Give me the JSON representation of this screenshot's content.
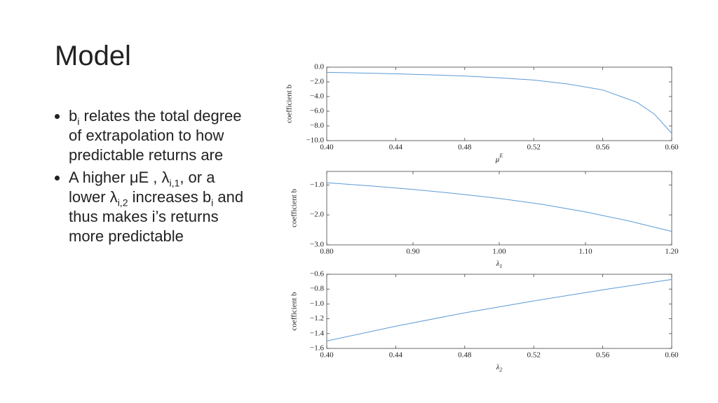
{
  "title": "Model",
  "bullets": [
    {
      "runs": [
        {
          "text": "b"
        },
        {
          "sub": "i"
        },
        {
          "text": " relates the total degree of extrapolation to how predictable returns are"
        }
      ]
    },
    {
      "runs": [
        {
          "text": "A higher μE , λ"
        },
        {
          "sub": "i,1"
        },
        {
          "text": ", or a lower λ"
        },
        {
          "sub": "i,2"
        },
        {
          "text": " increases b"
        },
        {
          "sub": "i"
        },
        {
          "text": " and thus makes i’s returns more predictable"
        }
      ]
    }
  ],
  "chart_data": [
    {
      "type": "line",
      "y_label": "coefficient b",
      "x_label": "μ",
      "x_label_sup": "E",
      "color": "#5b9bd5",
      "x": [
        0.4,
        0.42,
        0.44,
        0.46,
        0.48,
        0.5,
        0.52,
        0.54,
        0.56,
        0.58,
        0.59,
        0.6
      ],
      "values": [
        -0.7,
        -0.8,
        -0.9,
        -1.05,
        -1.2,
        -1.45,
        -1.75,
        -2.3,
        -3.1,
        -4.8,
        -6.4,
        -9.0
      ],
      "xlim": [
        0.4,
        0.6
      ],
      "xticks": [
        {
          "value": 0.4,
          "label": "0.40"
        },
        {
          "value": 0.44,
          "label": "0.44"
        },
        {
          "value": 0.48,
          "label": "0.48"
        },
        {
          "value": 0.52,
          "label": "0.52"
        },
        {
          "value": 0.56,
          "label": "0.56"
        },
        {
          "value": 0.6,
          "label": "0.60"
        }
      ],
      "ylim": [
        -10,
        0
      ],
      "yticks": [
        {
          "value": 0,
          "label": "0.0"
        },
        {
          "value": -2,
          "label": "−2.0"
        },
        {
          "value": -4,
          "label": "−4.0"
        },
        {
          "value": -6,
          "label": "−6.0"
        },
        {
          "value": -8,
          "label": "−8.0"
        },
        {
          "value": -10,
          "label": "−10.0"
        }
      ]
    },
    {
      "type": "line",
      "y_label": "coefficient b",
      "x_label": "λ",
      "x_label_sub": "1",
      "color": "#5b9bd5",
      "x": [
        0.8,
        0.85,
        0.9,
        0.95,
        1.0,
        1.05,
        1.1,
        1.15,
        1.2
      ],
      "values": [
        -0.93,
        -1.03,
        -1.15,
        -1.29,
        -1.45,
        -1.65,
        -1.9,
        -2.2,
        -2.55
      ],
      "xlim": [
        0.8,
        1.2
      ],
      "xticks": [
        {
          "value": 0.8,
          "label": "0.80"
        },
        {
          "value": 0.9,
          "label": "0.90"
        },
        {
          "value": 1.0,
          "label": "1.00"
        },
        {
          "value": 1.1,
          "label": "1.10"
        },
        {
          "value": 1.2,
          "label": "1.20"
        }
      ],
      "ylim": [
        -3.0,
        -0.55
      ],
      "yticks": [
        {
          "value": -1,
          "label": "−1.0"
        },
        {
          "value": -2,
          "label": "−2.0"
        },
        {
          "value": -3,
          "label": "−3.0"
        }
      ]
    },
    {
      "type": "line",
      "y_label": "coefficient b",
      "x_label": "λ",
      "x_label_sub": "2",
      "color": "#5b9bd5",
      "x": [
        0.4,
        0.44,
        0.48,
        0.52,
        0.56,
        0.6
      ],
      "values": [
        -1.5,
        -1.3,
        -1.12,
        -0.96,
        -0.81,
        -0.67
      ],
      "xlim": [
        0.4,
        0.6
      ],
      "xticks": [
        {
          "value": 0.4,
          "label": "0.40"
        },
        {
          "value": 0.44,
          "label": "0.44"
        },
        {
          "value": 0.48,
          "label": "0.48"
        },
        {
          "value": 0.52,
          "label": "0.52"
        },
        {
          "value": 0.56,
          "label": "0.56"
        },
        {
          "value": 0.6,
          "label": "0.60"
        }
      ],
      "ylim": [
        -1.6,
        -0.6
      ],
      "yticks": [
        {
          "value": -0.6,
          "label": "−0.6"
        },
        {
          "value": -0.8,
          "label": "−0.8"
        },
        {
          "value": -1.0,
          "label": "−1.0"
        },
        {
          "value": -1.2,
          "label": "−1.2"
        },
        {
          "value": -1.4,
          "label": "−1.4"
        },
        {
          "value": -1.6,
          "label": "−1.6"
        }
      ]
    }
  ]
}
